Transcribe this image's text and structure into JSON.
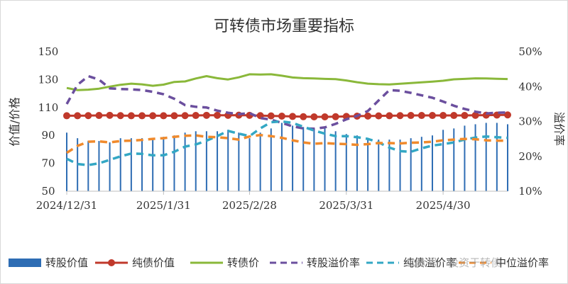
{
  "chart_data": {
    "type": "bar+line",
    "title": "可转债市场重要指标",
    "ylabel_left": "价值/价格",
    "ylabel_right": "溢价率",
    "yleft_range": [
      50,
      150
    ],
    "yleft_ticks": [
      "50",
      "70",
      "90",
      "110",
      "130",
      "150"
    ],
    "yright_range": [
      10,
      50
    ],
    "yright_ticks": [
      "10%",
      "20%",
      "30%",
      "40%",
      "50%"
    ],
    "x_tick_labels": [
      {
        "index": 0,
        "label": "2024/12/31"
      },
      {
        "index": 9,
        "label": "2025/1/31"
      },
      {
        "index": 17,
        "label": "2025/2/28"
      },
      {
        "index": 26,
        "label": "2025/3/31"
      },
      {
        "index": 35,
        "label": "2025/4/30"
      }
    ],
    "num_points": 42,
    "gridlines": false,
    "legend_position": "bottom",
    "series": [
      {
        "name": "转股价值",
        "type": "bar",
        "axis": "left",
        "color": "#2e6db4",
        "values": [
          92,
          88,
          86,
          86,
          85,
          88,
          88,
          88,
          88,
          89,
          90,
          92,
          93,
          93,
          93,
          94,
          92,
          88,
          92,
          95,
          99,
          97,
          96,
          95,
          95,
          93,
          91,
          90,
          88,
          87,
          87,
          87,
          88,
          89,
          90,
          94,
          95,
          97,
          98,
          99,
          99,
          98
        ]
      },
      {
        "name": "纯债价值",
        "type": "line",
        "axis": "left",
        "color": "#c0392b",
        "markers": true,
        "values": [
          104.1,
          104.1,
          104.2,
          104.3,
          104.4,
          104.2,
          104.1,
          104.1,
          104.1,
          104.1,
          104.1,
          104.2,
          104.3,
          104.4,
          104.4,
          104.4,
          104.5,
          104.4,
          104.2,
          104.0,
          103.8,
          103.6,
          103.4,
          103.3,
          103.3,
          103.4,
          103.6,
          103.8,
          103.9,
          104.0,
          104.1,
          104.2,
          104.3,
          104.3,
          104.3,
          104.3,
          104.3,
          104.3,
          104.4,
          104.5,
          104.6,
          104.7
        ]
      },
      {
        "name": "转债价",
        "type": "line",
        "axis": "left",
        "color": "#8ab83a",
        "markers": false,
        "values": [
          124,
          122.5,
          122.8,
          123.5,
          125,
          126.3,
          127.1,
          126.6,
          125.6,
          126.4,
          128.3,
          128.7,
          130.8,
          132.5,
          131,
          130.1,
          131.6,
          133.8,
          133.6,
          133.8,
          132.8,
          131.5,
          131,
          130.8,
          130.5,
          130.3,
          129.4,
          128.1,
          127.1,
          126.7,
          126.5,
          127,
          127.5,
          128,
          128.6,
          129.2,
          130.2,
          130.5,
          130.9,
          130.8,
          130.6,
          130.4
        ]
      },
      {
        "name": "转股溢价率",
        "type": "line",
        "axis": "right",
        "color": "#6b4f9e",
        "dashed": true,
        "values": [
          35,
          40.5,
          43,
          42,
          39.5,
          39.3,
          39.2,
          39,
          38.5,
          37.8,
          36.5,
          34.7,
          34.2,
          34,
          33.1,
          32.5,
          32.1,
          32.4,
          31,
          30.5,
          29.6,
          28.6,
          28,
          27.9,
          28.3,
          29.3,
          30.6,
          31.6,
          33,
          36,
          39,
          38.8,
          38.2,
          37.5,
          36.8,
          35.7,
          34.5,
          33.6,
          32.8,
          32.3,
          32.5,
          32.6
        ]
      },
      {
        "name": "纯债溢价率",
        "type": "line",
        "axis": "right",
        "color": "#33a7c4",
        "dashed": true,
        "values": [
          19.3,
          17.8,
          17.5,
          18,
          19,
          20,
          20.8,
          20.7,
          20.3,
          20.3,
          21.3,
          22.8,
          23.4,
          24.5,
          25.8,
          27.3,
          26.5,
          25.8,
          28,
          29.8,
          30,
          29.6,
          28.5,
          27.4,
          26.5,
          25.8,
          25.8,
          25.5,
          25,
          24,
          22.5,
          21.5,
          21.3,
          22.3,
          23.1,
          23.5,
          24,
          24.8,
          25.4,
          25.7,
          25.5,
          25.3
        ]
      },
      {
        "name": "中位溢价率",
        "type": "line",
        "axis": "right",
        "color": "#f08a2c",
        "dashed": true,
        "values": [
          21,
          23,
          24.2,
          24.3,
          24,
          24.4,
          24.5,
          24.7,
          25,
          25.2,
          25.6,
          25.9,
          26,
          25.6,
          25.5,
          25.2,
          24.8,
          25.7,
          26.1,
          25.8,
          25.3,
          24.6,
          24,
          23.6,
          23.8,
          23.6,
          23.5,
          23.3,
          23.5,
          23.8,
          23.8,
          23.7,
          23.9,
          24,
          24.2,
          24.6,
          24.8,
          25,
          24.9,
          24.6,
          24.5,
          24.5
        ]
      }
    ],
    "watermark": "公众号 · 投资于转债"
  }
}
